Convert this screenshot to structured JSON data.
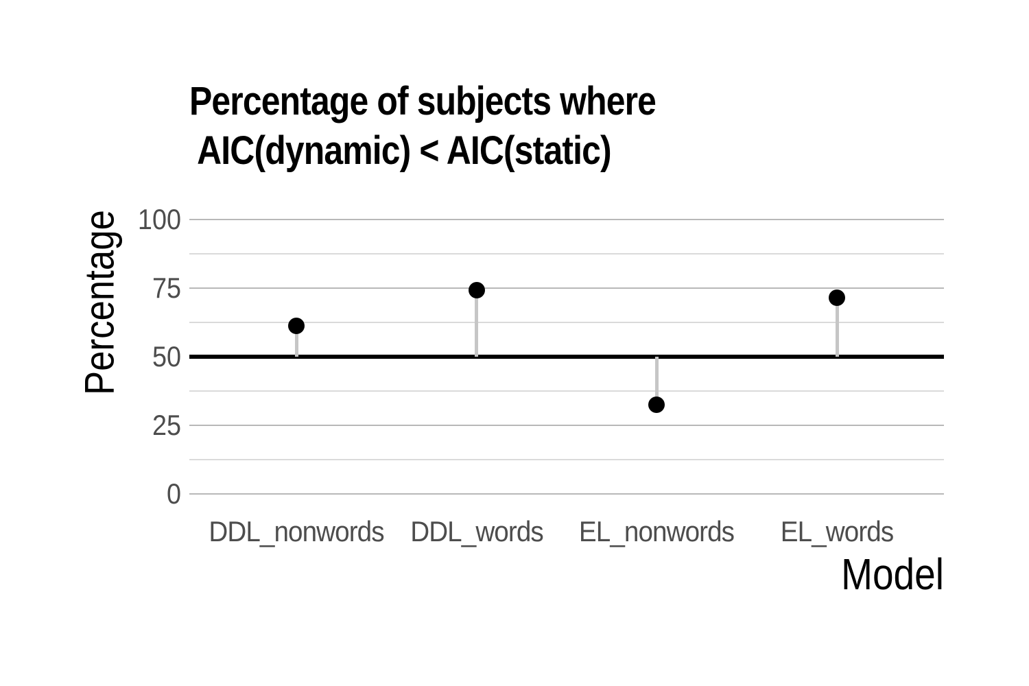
{
  "chart_data": {
    "type": "scatter",
    "subtype": "lollipop",
    "title_lines": [
      "Percentage of subjects where",
      " AIC(dynamic) < AIC(static)"
    ],
    "title": "Percentage of subjects where AIC(dynamic) < AIC(static)",
    "xlabel": "Model",
    "ylabel": "Percentage",
    "categories": [
      "DDL_nonwords",
      "DDL_words",
      "EL_nonwords",
      "EL_words"
    ],
    "values": [
      61.3,
      74.2,
      32.4,
      71.4
    ],
    "baseline": 50,
    "ylim": [
      0,
      100
    ],
    "yticks": [
      100,
      75,
      50,
      25,
      0
    ],
    "minor_gridlines": [
      87.5,
      62.5,
      37.5,
      12.5
    ],
    "grid": "horizontal-only",
    "legend": "none",
    "colors": {
      "point": "#000000",
      "stem": "#c6c6c6",
      "baseline": "#000000",
      "grid_major": "#b8b8b8",
      "grid_minor": "#dadada",
      "tick_label": "#4d4d4d",
      "axis_title": "#000000",
      "title": "#000000",
      "background": "#ffffff"
    }
  }
}
